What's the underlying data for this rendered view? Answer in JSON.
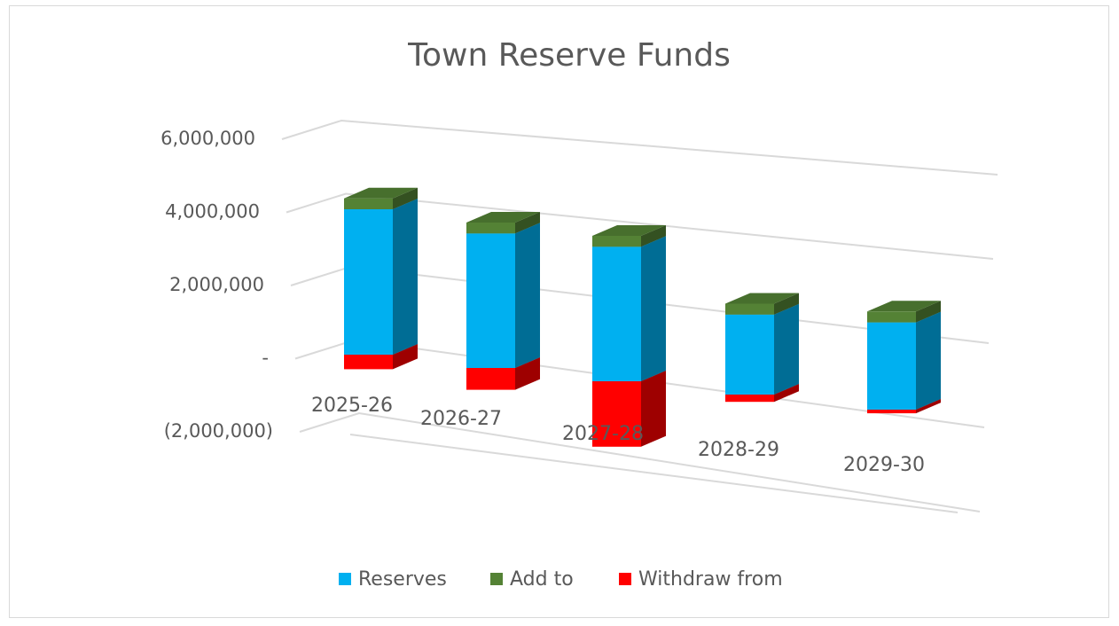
{
  "chart_data": {
    "type": "bar3d_stacked",
    "title": "Town Reserve Funds",
    "categories": [
      "2025-26",
      "2026-27",
      "2027-28",
      "2028-29",
      "2029-30"
    ],
    "series": [
      {
        "name": "Reserves",
        "color": "#00b0f0",
        "values": [
          4000000,
          3700000,
          3700000,
          2200000,
          2400000
        ]
      },
      {
        "name": "Add to",
        "color": "#548235",
        "values": [
          300000,
          300000,
          300000,
          300000,
          300000
        ]
      },
      {
        "name": "Withdraw from",
        "color": "#ff0000",
        "values": [
          -400000,
          -600000,
          -1800000,
          -200000,
          -100000
        ]
      }
    ],
    "ylim": [
      -2000000,
      6000000
    ],
    "yticks": [
      {
        "value": -2000000,
        "label": "(2,000,000)"
      },
      {
        "value": 0,
        "label": "-"
      },
      {
        "value": 2000000,
        "label": "2,000,000"
      },
      {
        "value": 4000000,
        "label": "4,000,000"
      },
      {
        "value": 6000000,
        "label": "6,000,000"
      }
    ],
    "grid": true,
    "legend": "bottom"
  }
}
